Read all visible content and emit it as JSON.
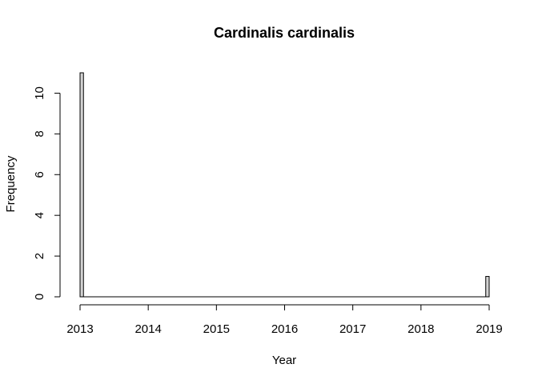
{
  "chart_data": {
    "type": "bar",
    "title": "Cardinalis cardinalis",
    "xlabel": "Year",
    "ylabel": "Frequency",
    "xlim": [
      2013,
      2019
    ],
    "ylim": [
      0,
      11
    ],
    "x_ticks": [
      2013,
      2014,
      2015,
      2016,
      2017,
      2018,
      2019
    ],
    "x_tick_labels": [
      "2013",
      "2014",
      "2015",
      "2016",
      "2017",
      "2018",
      "2019"
    ],
    "y_ticks": [
      0,
      2,
      4,
      6,
      8,
      10
    ],
    "y_tick_labels": [
      "0",
      "2",
      "4",
      "6",
      "8",
      "10"
    ],
    "grid": false,
    "bar_fill": "#d3d3d3",
    "bins": [
      {
        "start": 2013.0,
        "end": 2013.05,
        "count": 11
      },
      {
        "start": 2018.95,
        "end": 2019.0,
        "count": 1
      }
    ]
  }
}
